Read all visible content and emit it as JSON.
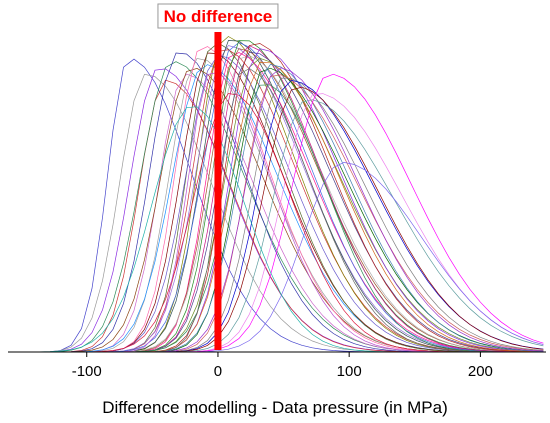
{
  "chart_data": {
    "type": "line",
    "title": "",
    "xlabel": "Difference modelling - Data pressure  (in MPa)",
    "ylabel": "",
    "xlim": [
      -160,
      250
    ],
    "ylim": [
      0,
      1
    ],
    "xticks": [
      -100,
      0,
      100,
      200
    ],
    "x_tick_labels": [
      "-100",
      "0",
      "100",
      "200"
    ],
    "grid": false,
    "legend": "none",
    "annotation": {
      "text": "No difference",
      "x": 0,
      "color": "#ff0000"
    },
    "series_shape": "gaussian curves, one per dataset (peak normalised to 1): center = x of peak, sigma_left / sigma_right in MPa",
    "series": [
      {
        "center": -68,
        "sigma_left": 16,
        "sigma_right": 48,
        "peak": 0.93,
        "color": "#4444cc"
      },
      {
        "center": -55,
        "sigma_left": 20,
        "sigma_right": 50,
        "peak": 0.88,
        "color": "#9a9a9a"
      },
      {
        "center": -45,
        "sigma_left": 22,
        "sigma_right": 52,
        "peak": 0.9,
        "color": "#8a2be2"
      },
      {
        "center": -40,
        "sigma_left": 20,
        "sigma_right": 50,
        "peak": 0.86,
        "color": "#cc3333"
      },
      {
        "center": -35,
        "sigma_left": 24,
        "sigma_right": 55,
        "peak": 0.92,
        "color": "#2e8b57"
      },
      {
        "center": -30,
        "sigma_left": 22,
        "sigma_right": 50,
        "peak": 0.95,
        "color": "#3333aa"
      },
      {
        "center": -25,
        "sigma_left": 20,
        "sigma_right": 52,
        "peak": 0.88,
        "color": "#cc66cc"
      },
      {
        "center": -20,
        "sigma_left": 24,
        "sigma_right": 55,
        "peak": 0.9,
        "color": "#8b4513"
      },
      {
        "center": -15,
        "sigma_left": 22,
        "sigma_right": 53,
        "peak": 0.93,
        "color": "#a0a0a0"
      },
      {
        "center": -12,
        "sigma_left": 20,
        "sigma_right": 50,
        "peak": 0.97,
        "color": "#ff66aa"
      },
      {
        "center": -10,
        "sigma_left": 25,
        "sigma_right": 56,
        "peak": 0.91,
        "color": "#1e90ff"
      },
      {
        "center": -6,
        "sigma_left": 22,
        "sigma_right": 54,
        "peak": 0.95,
        "color": "#800000"
      },
      {
        "center": -3,
        "sigma_left": 20,
        "sigma_right": 52,
        "peak": 0.98,
        "color": "#556b2f"
      },
      {
        "center": 0,
        "sigma_left": 24,
        "sigma_right": 55,
        "peak": 0.94,
        "color": "#6a5acd"
      },
      {
        "center": 3,
        "sigma_left": 22,
        "sigma_right": 56,
        "peak": 0.96,
        "color": "#cc3333"
      },
      {
        "center": 5,
        "sigma_left": 20,
        "sigma_right": 54,
        "peak": 1.0,
        "color": "#808000"
      },
      {
        "center": 8,
        "sigma_left": 24,
        "sigma_right": 57,
        "peak": 0.97,
        "color": "#9370db"
      },
      {
        "center": 10,
        "sigma_left": 22,
        "sigma_right": 55,
        "peak": 0.99,
        "color": "#2f4f4f"
      },
      {
        "center": 12,
        "sigma_left": 20,
        "sigma_right": 58,
        "peak": 0.95,
        "color": "#ff1493"
      },
      {
        "center": 14,
        "sigma_left": 25,
        "sigma_right": 56,
        "peak": 0.98,
        "color": "#4169e1"
      },
      {
        "center": 16,
        "sigma_left": 22,
        "sigma_right": 60,
        "peak": 0.96,
        "color": "#a0522d"
      },
      {
        "center": 18,
        "sigma_left": 21,
        "sigma_right": 57,
        "peak": 0.99,
        "color": "#228b22"
      },
      {
        "center": 20,
        "sigma_left": 24,
        "sigma_right": 59,
        "peak": 0.94,
        "color": "#b0b0b0"
      },
      {
        "center": 22,
        "sigma_left": 22,
        "sigma_right": 55,
        "peak": 0.97,
        "color": "#c71585"
      },
      {
        "center": 25,
        "sigma_left": 23,
        "sigma_right": 60,
        "peak": 0.95,
        "color": "#483d8b"
      },
      {
        "center": 27,
        "sigma_left": 21,
        "sigma_right": 58,
        "peak": 0.98,
        "color": "#b22222"
      },
      {
        "center": 30,
        "sigma_left": 24,
        "sigma_right": 62,
        "peak": 0.93,
        "color": "#6b8e23"
      },
      {
        "center": 32,
        "sigma_left": 22,
        "sigma_right": 60,
        "peak": 0.96,
        "color": "#8a2be2"
      },
      {
        "center": 34,
        "sigma_left": 23,
        "sigma_right": 58,
        "peak": 0.92,
        "color": "#d2691e"
      },
      {
        "center": 36,
        "sigma_left": 22,
        "sigma_right": 62,
        "peak": 0.9,
        "color": "#006400"
      },
      {
        "center": 40,
        "sigma_left": 24,
        "sigma_right": 60,
        "peak": 0.91,
        "color": "#4682b4"
      },
      {
        "center": 43,
        "sigma_left": 22,
        "sigma_right": 63,
        "peak": 0.88,
        "color": "#cd5c5c"
      },
      {
        "center": 46,
        "sigma_left": 24,
        "sigma_right": 60,
        "peak": 0.9,
        "color": "#9932cc"
      },
      {
        "center": 50,
        "sigma_left": 23,
        "sigma_right": 62,
        "peak": 0.87,
        "color": "#808080"
      },
      {
        "center": 55,
        "sigma_left": 24,
        "sigma_right": 64,
        "peak": 0.86,
        "color": "#0000cd"
      },
      {
        "center": 60,
        "sigma_left": 25,
        "sigma_right": 62,
        "peak": 0.84,
        "color": "#8b0000"
      },
      {
        "center": 68,
        "sigma_left": 26,
        "sigma_right": 66,
        "peak": 0.8,
        "color": "#5f9ea0"
      },
      {
        "center": 75,
        "sigma_left": 26,
        "sigma_right": 65,
        "peak": 0.82,
        "color": "#ee82ee"
      },
      {
        "center": 85,
        "sigma_left": 28,
        "sigma_right": 62,
        "peak": 0.88,
        "color": "#ff00ff"
      },
      {
        "center": 95,
        "sigma_left": 30,
        "sigma_right": 60,
        "peak": 0.6,
        "color": "#7b68ee"
      },
      {
        "center": -20,
        "sigma_left": 30,
        "sigma_right": 40,
        "peak": 0.78,
        "color": "#20b2aa"
      },
      {
        "center": 10,
        "sigma_left": 28,
        "sigma_right": 45,
        "peak": 0.82,
        "color": "#dc143c"
      },
      {
        "center": 35,
        "sigma_left": 26,
        "sigma_right": 48,
        "peak": 0.85,
        "color": "#2e8b57"
      },
      {
        "center": -5,
        "sigma_left": 18,
        "sigma_right": 46,
        "peak": 0.89,
        "color": "#ba55d3"
      },
      {
        "center": 20,
        "sigma_left": 18,
        "sigma_right": 50,
        "peak": 0.9,
        "color": "#696969"
      }
    ]
  }
}
